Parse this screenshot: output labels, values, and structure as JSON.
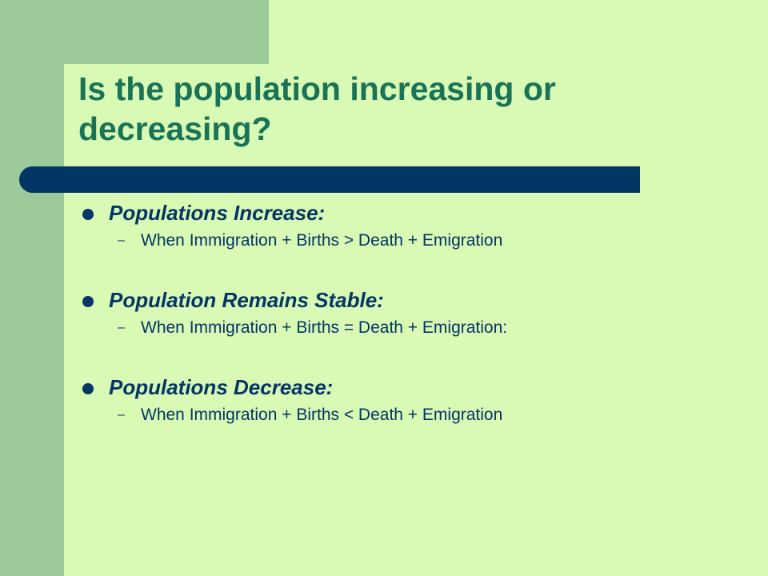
{
  "slide": {
    "title": "Is the population increasing or decreasing?",
    "bullets": [
      {
        "label": "Populations Increase:",
        "sub": "When Immigration + Births > Death + Emigration"
      },
      {
        "label": "Population Remains Stable:",
        "sub": "When Immigration + Births = Death + Emigration:"
      },
      {
        "label": "Populations Decrease:",
        "sub": "When Immigration + Births < Death + Emigration"
      }
    ]
  },
  "colors": {
    "background": "#d8fab4",
    "side_band": "#9cca9a",
    "title_text": "#1a7356",
    "accent_bar": "#033565",
    "body_text": "#033565"
  }
}
